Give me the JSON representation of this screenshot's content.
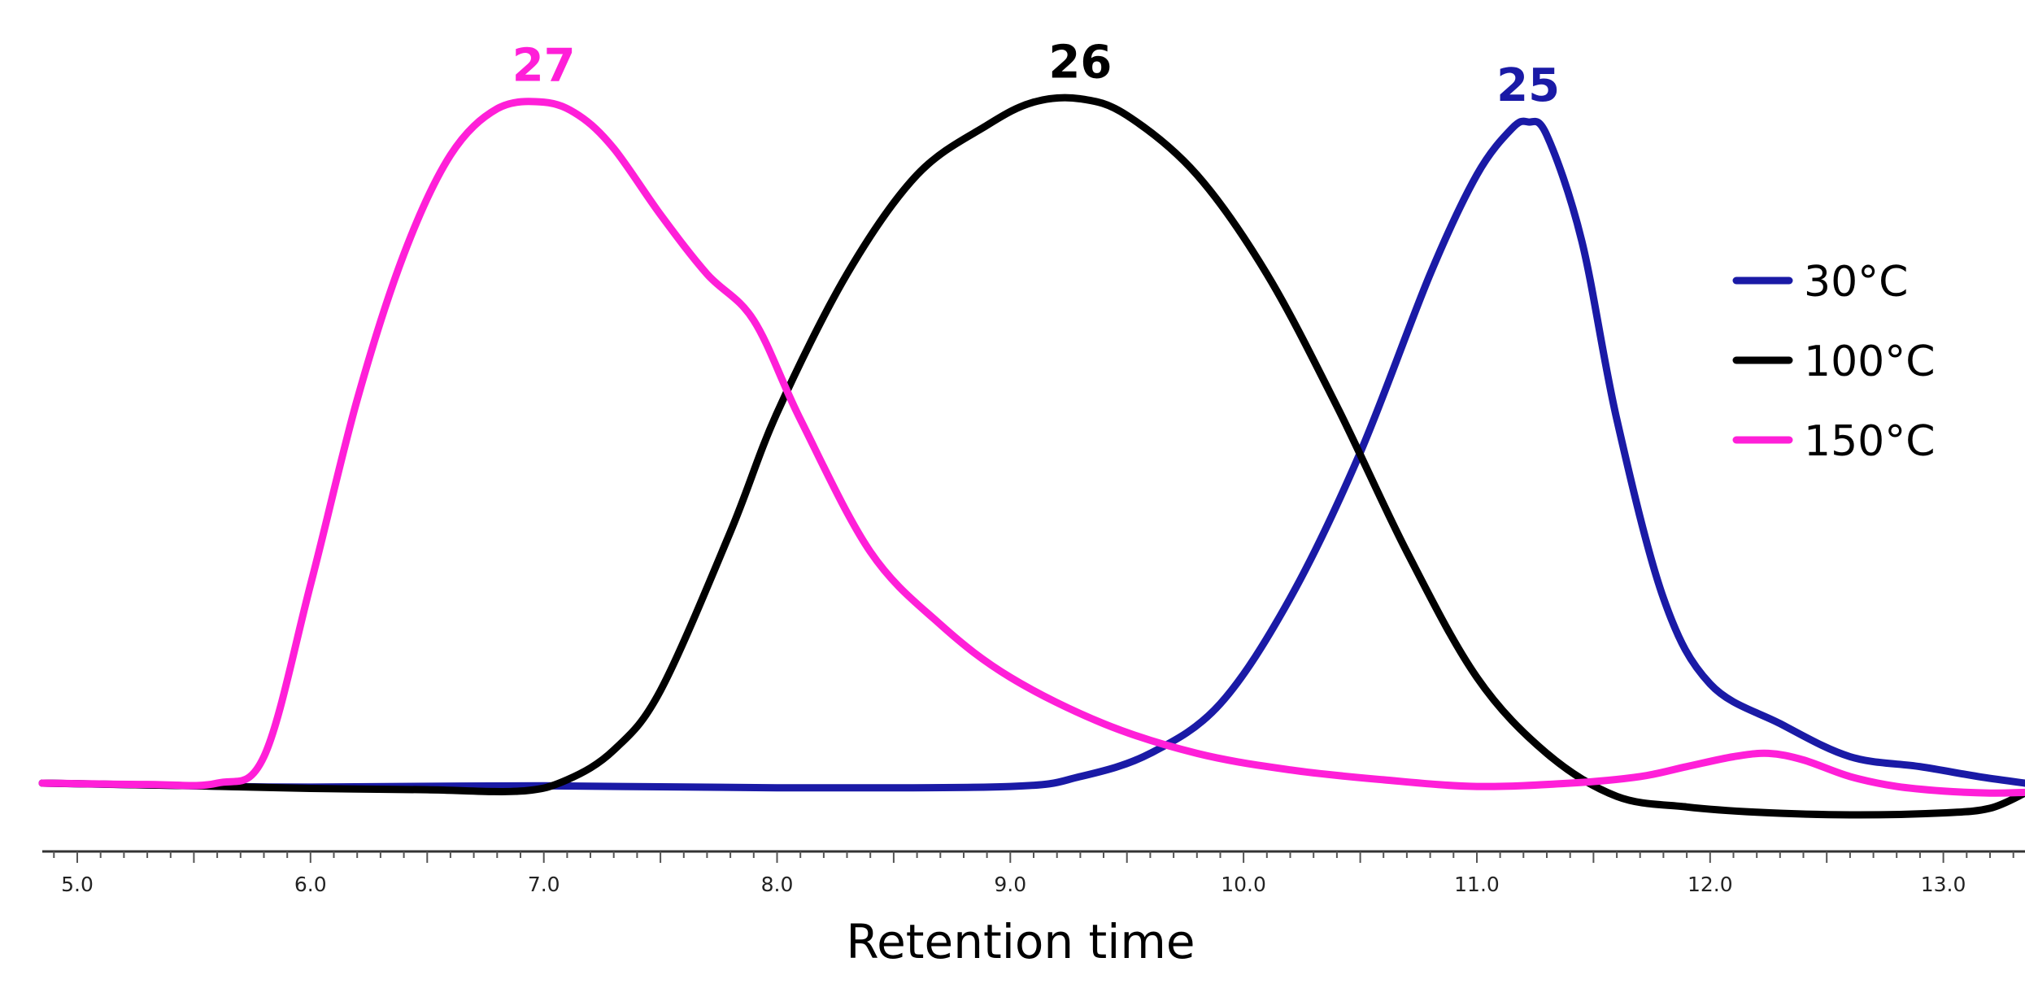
{
  "chart_data": {
    "type": "line",
    "title": "",
    "xlabel": "Retention time",
    "ylabel": "",
    "xlim": [
      4.85,
      13.35
    ],
    "ylim": [
      -0.06,
      1.05
    ],
    "x_ticks": [
      "5.0",
      "6.0",
      "7.0",
      "8.0",
      "9.0",
      "10.0",
      "11.0",
      "12.0",
      "13.0"
    ],
    "grid": false,
    "legend_position": "right",
    "series": [
      {
        "name": "30°C",
        "peak_label": "25",
        "color": "#1a1aa6",
        "x": [
          4.85,
          5.5,
          6.0,
          7.0,
          8.0,
          9.0,
          9.3,
          9.6,
          9.9,
          10.2,
          10.5,
          10.8,
          11.0,
          11.15,
          11.22,
          11.3,
          11.45,
          11.6,
          11.8,
          12.0,
          12.3,
          12.6,
          12.9,
          13.15,
          13.35
        ],
        "y": [
          0.0,
          -0.004,
          -0.006,
          -0.004,
          -0.007,
          -0.005,
          0.01,
          0.045,
          0.12,
          0.28,
          0.5,
          0.77,
          0.92,
          0.99,
          1.0,
          0.98,
          0.82,
          0.55,
          0.28,
          0.15,
          0.09,
          0.04,
          0.025,
          0.01,
          0.0
        ]
      },
      {
        "name": "100°C",
        "peak_label": "26",
        "color": "#000000",
        "x": [
          4.85,
          5.5,
          6.0,
          6.5,
          6.9,
          7.1,
          7.3,
          7.5,
          7.8,
          8.0,
          8.3,
          8.6,
          8.9,
          9.1,
          9.3,
          9.5,
          9.8,
          10.1,
          10.4,
          10.7,
          11.0,
          11.3,
          11.6,
          11.9,
          12.2,
          12.6,
          13.0,
          13.2,
          13.35
        ],
        "y": [
          0.0,
          -0.004,
          -0.008,
          -0.01,
          -0.012,
          0.005,
          0.05,
          0.14,
          0.38,
          0.56,
          0.77,
          0.92,
          0.995,
          1.03,
          1.035,
          1.01,
          0.92,
          0.77,
          0.57,
          0.35,
          0.16,
          0.045,
          -0.02,
          -0.036,
          -0.044,
          -0.048,
          -0.045,
          -0.038,
          -0.015
        ]
      },
      {
        "name": "150°C",
        "peak_label": "27",
        "color": "#ff1fd8",
        "x": [
          4.85,
          5.3,
          5.6,
          5.8,
          6.0,
          6.2,
          6.4,
          6.6,
          6.8,
          7.0,
          7.15,
          7.3,
          7.5,
          7.7,
          7.9,
          8.1,
          8.4,
          8.7,
          9.0,
          9.4,
          9.8,
          10.2,
          10.6,
          11.0,
          11.4,
          11.7,
          11.9,
          12.1,
          12.25,
          12.4,
          12.6,
          12.8,
          13.0,
          13.2,
          13.35
        ],
        "y": [
          0.0,
          -0.002,
          0.0,
          0.04,
          0.3,
          0.58,
          0.8,
          0.95,
          1.02,
          1.03,
          1.01,
          0.96,
          0.86,
          0.77,
          0.7,
          0.55,
          0.35,
          0.24,
          0.16,
          0.09,
          0.045,
          0.02,
          0.005,
          -0.005,
          0.0,
          0.01,
          0.025,
          0.04,
          0.045,
          0.035,
          0.01,
          -0.005,
          -0.012,
          -0.015,
          -0.014
        ]
      }
    ]
  }
}
